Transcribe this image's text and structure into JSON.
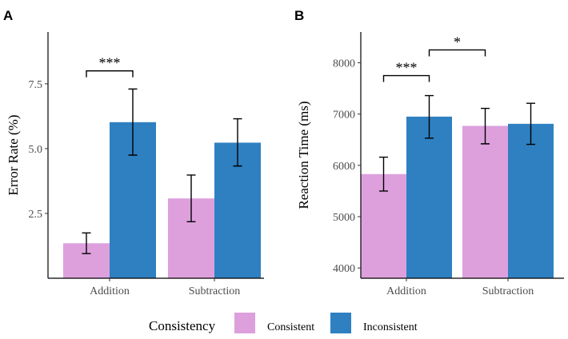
{
  "colors": {
    "consistent": "#dda0dd",
    "inconsistent": "#2e80c1"
  },
  "legend": {
    "title": "Consistency",
    "entries": [
      "Consistent",
      "Inconsistent"
    ]
  },
  "chart_data": [
    {
      "panel": "A",
      "type": "bar",
      "ylabel": "Error Rate (%)",
      "xlabel": "",
      "categories": [
        "Addition",
        "Subtraction"
      ],
      "ylim": [
        0,
        9.5
      ],
      "yticks": [
        2.5,
        5.0,
        7.5
      ],
      "ytick_labels": [
        "2.5",
        "5.0",
        "7.5"
      ],
      "series": [
        {
          "name": "Consistent",
          "values": [
            1.35,
            3.08
          ],
          "err_low": [
            0.95,
            2.18
          ],
          "err_high": [
            1.75,
            3.98
          ]
        },
        {
          "name": "Inconsistent",
          "values": [
            6.02,
            5.23
          ],
          "err_low": [
            4.75,
            4.33
          ],
          "err_high": [
            7.3,
            6.15
          ]
        }
      ],
      "significance": [
        {
          "label": "***",
          "from": [
            0,
            0
          ],
          "to": [
            0,
            1
          ],
          "y": 8.0
        }
      ]
    },
    {
      "panel": "B",
      "type": "bar",
      "ylabel": "Reaction Time (ms)",
      "xlabel": "",
      "categories": [
        "Addition",
        "Subtraction"
      ],
      "ylim": [
        3800,
        8600
      ],
      "yticks": [
        4000,
        5000,
        6000,
        7000,
        8000
      ],
      "ytick_labels": [
        "4000",
        "5000",
        "6000",
        "7000",
        "8000"
      ],
      "series": [
        {
          "name": "Consistent",
          "values": [
            5830,
            6770
          ],
          "err_low": [
            5500,
            6420
          ],
          "err_high": [
            6160,
            7110
          ]
        },
        {
          "name": "Inconsistent",
          "values": [
            6950,
            6810
          ],
          "err_low": [
            6530,
            6410
          ],
          "err_high": [
            7360,
            7210
          ]
        }
      ],
      "significance": [
        {
          "label": "***",
          "from": [
            0,
            0
          ],
          "to": [
            0,
            1
          ],
          "y": 7750
        },
        {
          "label": "*",
          "from": [
            0,
            1
          ],
          "to": [
            1,
            0
          ],
          "y": 8250
        }
      ]
    }
  ]
}
